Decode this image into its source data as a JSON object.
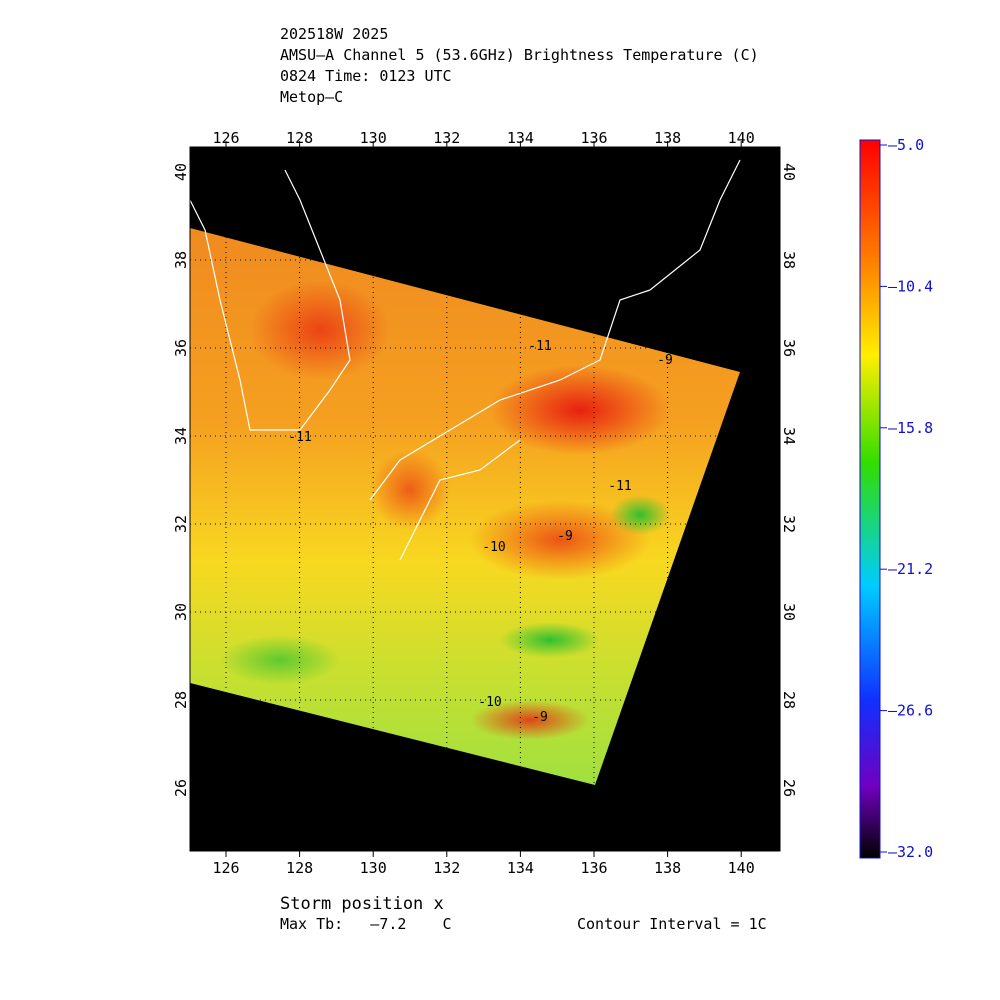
{
  "header": {
    "lines": [
      "202518W 2025",
      "AMSU–A Channel 5 (53.6GHz) Brightness Temperature (C)",
      "0824 Time: 0123 UTC",
      "Metop–C"
    ]
  },
  "map": {
    "lon_labels": [
      "126",
      "128",
      "130",
      "132",
      "134",
      "136",
      "138",
      "140"
    ],
    "lat_labels": [
      "26",
      "28",
      "30",
      "32",
      "34",
      "36",
      "38",
      "40"
    ],
    "contour_labels": [
      "-11",
      "-11",
      "-10",
      "-9",
      "-11",
      "-10",
      "-9",
      "-9"
    ]
  },
  "colorbar": {
    "labels": [
      "–5.0",
      "–10.4",
      "–15.8",
      "–21.2",
      "–26.6",
      "–32.0"
    ]
  },
  "footer": {
    "storm": "Storm position x",
    "max_tb": "Max Tb:   –7.2    C",
    "interval": "Contour Interval = 1C"
  }
}
